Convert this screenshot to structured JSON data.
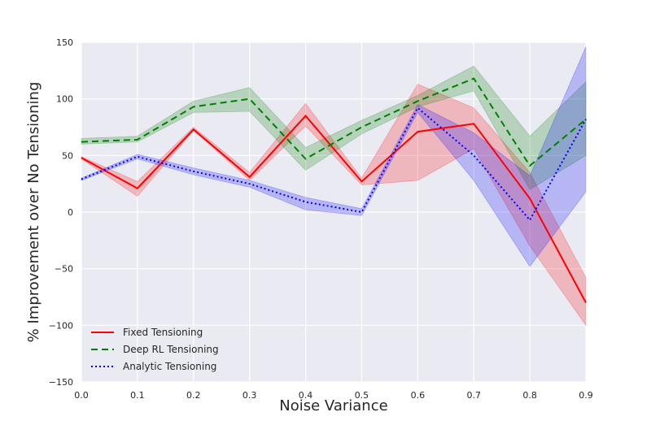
{
  "chart_data": {
    "type": "line",
    "title": "",
    "xlabel": "Noise Variance",
    "ylabel": "% Improvement over No Tensioning",
    "xlim": [
      0.0,
      0.9
    ],
    "ylim": [
      -150,
      150
    ],
    "x": [
      0.0,
      0.1,
      0.2,
      0.3,
      0.4,
      0.5,
      0.6,
      0.7,
      0.8,
      0.9
    ],
    "x_ticks": [
      "0.0",
      "0.1",
      "0.2",
      "0.3",
      "0.4",
      "0.5",
      "0.6",
      "0.7",
      "0.8",
      "0.9"
    ],
    "y_ticks": [
      150,
      100,
      50,
      0,
      -50,
      -100,
      -150
    ],
    "grid": true,
    "legend_position": "lower-left",
    "series": [
      {
        "name": "Fixed Tensioning",
        "color": "#ff0000",
        "style": "solid",
        "values": [
          48,
          21,
          73,
          31,
          85,
          27,
          71,
          78,
          12,
          -80
        ],
        "lower": [
          47,
          14,
          72,
          28,
          76,
          24,
          28,
          56,
          -30,
          -100
        ],
        "upper": [
          49,
          27,
          75,
          35,
          96,
          30,
          113,
          92,
          35,
          -58
        ]
      },
      {
        "name": "Deep RL Tensioning",
        "color": "#008000",
        "style": "dashed",
        "values": [
          62,
          64,
          93,
          100,
          47,
          75,
          98,
          118,
          41,
          82
        ],
        "lower": [
          60,
          62,
          88,
          89,
          37,
          69,
          93,
          107,
          20,
          50
        ],
        "upper": [
          65,
          67,
          98,
          110,
          57,
          81,
          103,
          129,
          67,
          115
        ]
      },
      {
        "name": "Analytic Tensioning",
        "color": "#0000ff",
        "style": "dotted",
        "values": [
          29,
          49,
          36,
          25,
          9,
          0,
          92,
          50,
          -7,
          82
        ],
        "lower": [
          28,
          47,
          33,
          22,
          2,
          -3,
          88,
          28,
          -48,
          18
        ],
        "upper": [
          30,
          51,
          39,
          28,
          13,
          3,
          95,
          70,
          32,
          146
        ]
      }
    ]
  }
}
